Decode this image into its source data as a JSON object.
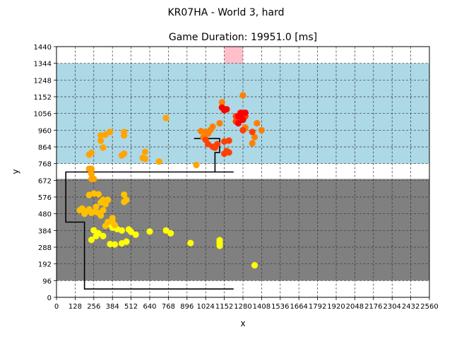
{
  "chart_data": {
    "type": "scatter",
    "suptitle": "KR07HA - World 3, hard",
    "title": "Game Duration: 19951.0 [ms]",
    "xlabel": "x",
    "ylabel": "y",
    "xlim": [
      0,
      2560
    ],
    "ylim": [
      0,
      1440
    ],
    "xticks": [
      0,
      128,
      256,
      384,
      512,
      640,
      768,
      896,
      1024,
      1152,
      1280,
      1408,
      1536,
      1664,
      1792,
      1920,
      2048,
      2176,
      2304,
      2432,
      2560
    ],
    "yticks": [
      0,
      96,
      192,
      288,
      384,
      480,
      576,
      672,
      768,
      864,
      960,
      1056,
      1152,
      1248,
      1344,
      1440
    ],
    "grid": true,
    "regions": [
      {
        "name": "gray zone",
        "color": "#808080",
        "x": [
          0,
          2560
        ],
        "y": [
          96,
          680
        ]
      },
      {
        "name": "blue zone",
        "color": "#add8e6",
        "x": [
          0,
          2560
        ],
        "y": [
          768,
          1344
        ]
      },
      {
        "name": "pink zone",
        "color": "#ffc0cb",
        "x": [
          1152,
          1280
        ],
        "y": [
          1344,
          1440
        ]
      }
    ],
    "path": [
      [
        1216,
        48
      ],
      [
        192,
        48
      ],
      [
        192,
        432
      ],
      [
        64,
        432
      ],
      [
        64,
        720
      ],
      [
        1216,
        720
      ],
      [
        1216,
        720
      ],
      [
        1088,
        720
      ],
      [
        1088,
        832
      ],
      [
        1120,
        832
      ],
      [
        1120,
        912
      ],
      [
        944,
        912
      ]
    ],
    "series": [
      {
        "color": "#ffff00",
        "points": [
          [
            1360,
            184
          ],
          [
            1120,
            296
          ],
          [
            1120,
            312
          ],
          [
            1120,
            328
          ],
          [
            920,
            312
          ],
          [
            784,
            368
          ],
          [
            752,
            384
          ],
          [
            640,
            378
          ],
          [
            544,
            360
          ],
          [
            512,
            376
          ],
          [
            496,
            390
          ],
          [
            448,
            384
          ],
          [
            416,
            392
          ],
          [
            384,
            400
          ],
          [
            352,
            420
          ],
          [
            400,
            304
          ],
          [
            368,
            306
          ],
          [
            448,
            310
          ],
          [
            480,
            320
          ],
          [
            288,
            368
          ],
          [
            256,
            385
          ],
          [
            240,
            330
          ],
          [
            272,
            352
          ],
          [
            320,
            352
          ]
        ]
      },
      {
        "color": "#ffc000",
        "points": [
          [
            176,
            510
          ],
          [
            160,
            500
          ],
          [
            208,
            495
          ],
          [
            240,
            485
          ],
          [
            256,
            490
          ],
          [
            288,
            486
          ],
          [
            320,
            500
          ],
          [
            192,
            480
          ],
          [
            224,
            505
          ],
          [
            304,
            470
          ],
          [
            336,
            535
          ],
          [
            352,
            560
          ],
          [
            320,
            560
          ],
          [
            304,
            545
          ],
          [
            272,
            520
          ],
          [
            288,
            592
          ],
          [
            256,
            596
          ],
          [
            224,
            588
          ],
          [
            464,
            590
          ],
          [
            480,
            560
          ],
          [
            464,
            548
          ],
          [
            384,
            455
          ],
          [
            384,
            435
          ],
          [
            400,
            415
          ],
          [
            352,
            432
          ],
          [
            336,
            410
          ]
        ]
      },
      {
        "color": "#ffa500",
        "points": [
          [
            224,
            738
          ],
          [
            240,
            738
          ],
          [
            240,
            710
          ],
          [
            240,
            680
          ],
          [
            256,
            680
          ],
          [
            224,
            820
          ],
          [
            240,
            830
          ],
          [
            320,
            860
          ],
          [
            304,
            900
          ],
          [
            304,
            930
          ],
          [
            336,
            935
          ],
          [
            368,
            950
          ],
          [
            464,
            930
          ],
          [
            464,
            950
          ],
          [
            464,
            825
          ],
          [
            448,
            815
          ],
          [
            608,
            835
          ],
          [
            592,
            800
          ],
          [
            608,
            795
          ],
          [
            704,
            780
          ],
          [
            752,
            1030
          ],
          [
            960,
            760
          ]
        ]
      },
      {
        "color": "#ff8000",
        "points": [
          [
            1024,
            950
          ],
          [
            1040,
            940
          ],
          [
            1008,
            920
          ],
          [
            992,
            955
          ],
          [
            1072,
            980
          ],
          [
            1056,
            960
          ],
          [
            1120,
            1000
          ],
          [
            1136,
            1120
          ],
          [
            1280,
            1160
          ],
          [
            1376,
            1000
          ],
          [
            1408,
            960
          ],
          [
            1360,
            920
          ],
          [
            1344,
            885
          ],
          [
            1296,
            975
          ]
        ]
      },
      {
        "color": "#ff4000",
        "points": [
          [
            1024,
            905
          ],
          [
            1040,
            880
          ],
          [
            1072,
            865
          ],
          [
            1088,
            860
          ],
          [
            1104,
            880
          ],
          [
            1152,
            895
          ],
          [
            1184,
            900
          ],
          [
            1168,
            840
          ],
          [
            1152,
            825
          ],
          [
            1184,
            832
          ],
          [
            1232,
            1010
          ],
          [
            1296,
            1040
          ],
          [
            1264,
            1020
          ],
          [
            1232,
            1040
          ],
          [
            1280,
            960
          ],
          [
            1344,
            950
          ]
        ]
      },
      {
        "color": "#ff0000",
        "points": [
          [
            1264,
            1040
          ],
          [
            1248,
            1000
          ],
          [
            1296,
            1060
          ],
          [
            1264,
            1060
          ],
          [
            1280,
            1020
          ],
          [
            1248,
            1040
          ],
          [
            1168,
            1080
          ],
          [
            1136,
            1090
          ],
          [
            1152,
            1075
          ]
        ]
      }
    ]
  }
}
